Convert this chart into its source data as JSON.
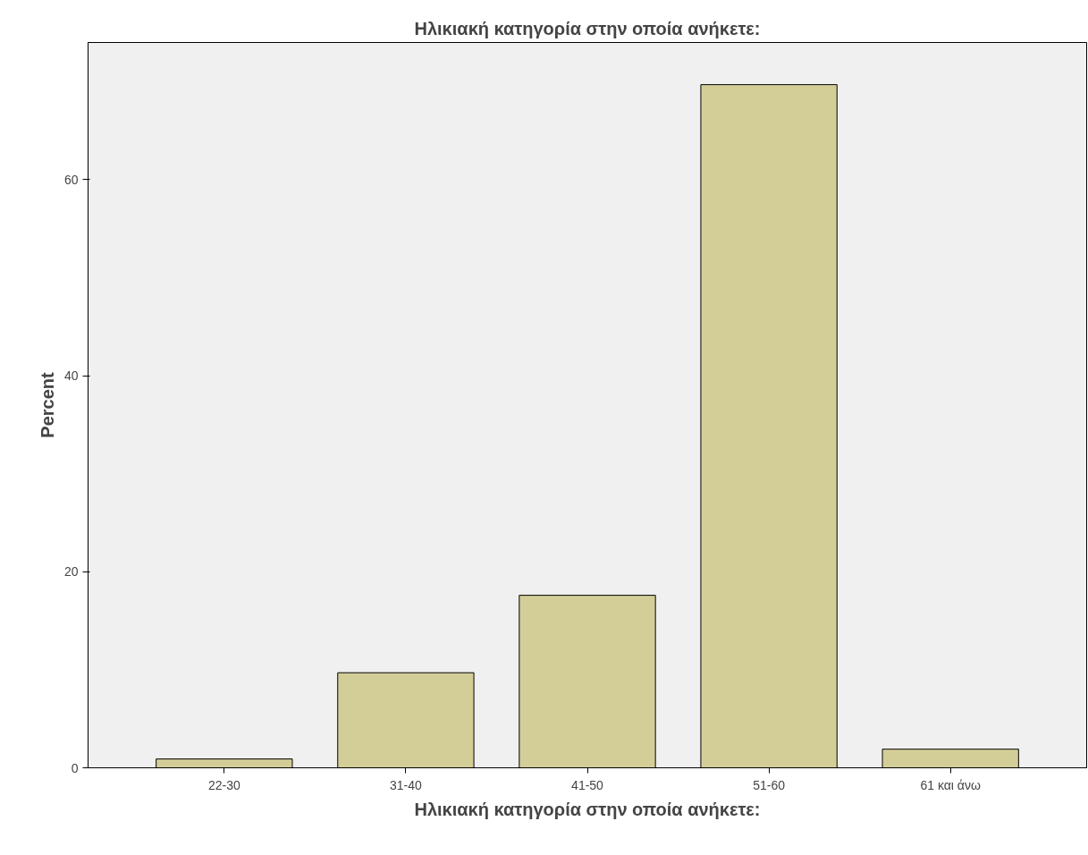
{
  "chart_data": {
    "type": "bar",
    "title": "Ηλικιακή κατηγορία στην οποία ανήκετε:",
    "xlabel": "Ηλικιακή κατηγορία στην οποία ανήκετε:",
    "ylabel": "Percent",
    "categories": [
      "22-30",
      "31-40",
      "41-50",
      "51-60",
      "61 και άνω"
    ],
    "values": [
      0.9,
      9.7,
      17.6,
      69.7,
      1.9
    ],
    "color": "#d3ce97",
    "ylim": [
      0,
      74
    ],
    "yticks": [
      0,
      20,
      40,
      60
    ],
    "grid": false
  }
}
